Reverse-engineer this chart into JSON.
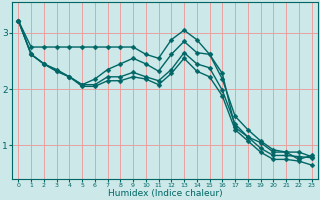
{
  "xlabel": "Humidex (Indice chaleur)",
  "bg_color": "#cce8e8",
  "grid_color": "#e8a0a0",
  "line_color": "#006666",
  "line_width": 1.0,
  "marker": "D",
  "marker_size": 2.5,
  "xlim": [
    -0.5,
    23.5
  ],
  "ylim": [
    0.4,
    3.55
  ],
  "yticks": [
    1,
    2,
    3
  ],
  "xticks": [
    0,
    1,
    2,
    3,
    4,
    5,
    6,
    7,
    8,
    9,
    10,
    11,
    12,
    13,
    14,
    15,
    16,
    17,
    18,
    19,
    20,
    21,
    22,
    23
  ],
  "lines": [
    [
      3.22,
      2.75,
      2.75,
      2.75,
      2.75,
      2.75,
      2.75,
      2.75,
      2.75,
      2.75,
      2.62,
      2.55,
      2.88,
      3.05,
      2.88,
      2.62,
      2.28,
      1.32,
      1.15,
      1.05,
      0.88,
      0.88,
      0.75,
      0.82
    ],
    [
      3.22,
      2.62,
      2.45,
      2.35,
      2.22,
      2.08,
      2.18,
      2.35,
      2.45,
      2.55,
      2.45,
      2.32,
      2.62,
      2.85,
      2.65,
      2.62,
      2.18,
      1.52,
      1.28,
      1.08,
      0.92,
      0.88,
      0.88,
      0.8
    ],
    [
      3.22,
      2.62,
      2.45,
      2.32,
      2.22,
      2.08,
      2.08,
      2.22,
      2.22,
      2.3,
      2.22,
      2.15,
      2.35,
      2.65,
      2.45,
      2.38,
      1.98,
      1.38,
      1.15,
      0.95,
      0.82,
      0.82,
      0.8,
      0.78
    ],
    [
      3.22,
      2.62,
      2.45,
      2.32,
      2.22,
      2.05,
      2.05,
      2.15,
      2.15,
      2.22,
      2.18,
      2.08,
      2.28,
      2.55,
      2.32,
      2.22,
      1.88,
      1.28,
      1.08,
      0.88,
      0.75,
      0.75,
      0.72,
      0.65
    ]
  ]
}
